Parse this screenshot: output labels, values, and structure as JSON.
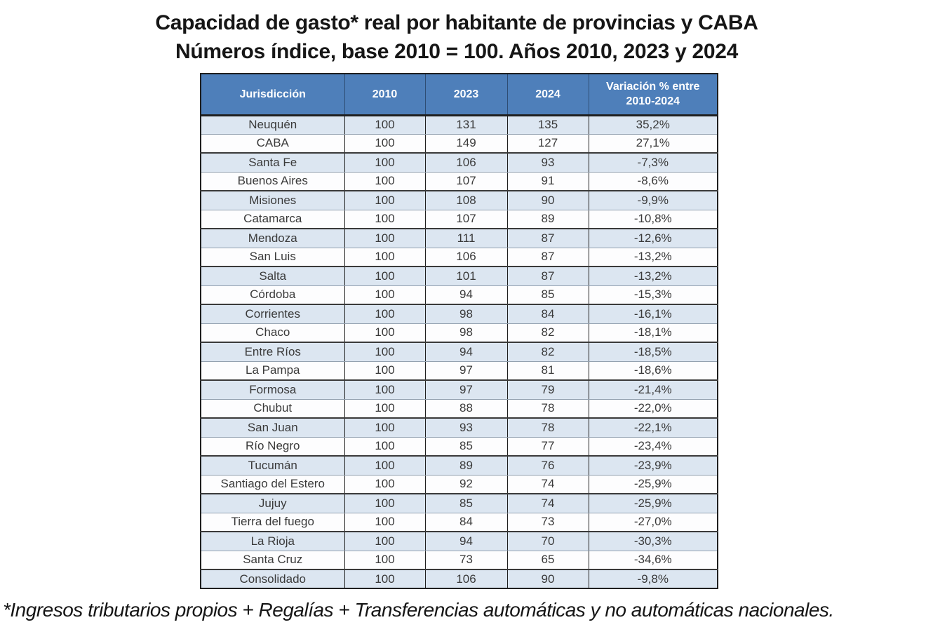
{
  "title": {
    "line1": "Capacidad de gasto* real por habitante de provincias y CABA",
    "line2": "Números índice, base 2010 = 100. Años 2010, 2023 y 2024"
  },
  "table_header": {
    "jurisdiccion": "Jurisdicción",
    "y2010": "2010",
    "y2023": "2023",
    "y2024": "2024",
    "variacion_line1": "Variación % entre",
    "variacion_line2": "2010-2024"
  },
  "chart_data": {
    "type": "table",
    "title": "Capacidad de gasto* real por habitante de provincias y CABA — Números índice, base 2010 = 100. Años 2010, 2023 y 2024",
    "columns": [
      "Jurisdicción",
      "2010",
      "2023",
      "2024",
      "Variación % entre 2010-2024"
    ],
    "rows": [
      {
        "jurisdiccion": "Neuquén",
        "y2010": "100",
        "y2023": "131",
        "y2024": "135",
        "variacion": "35,2%"
      },
      {
        "jurisdiccion": "CABA",
        "y2010": "100",
        "y2023": "149",
        "y2024": "127",
        "variacion": "27,1%"
      },
      {
        "jurisdiccion": "Santa Fe",
        "y2010": "100",
        "y2023": "106",
        "y2024": "93",
        "variacion": "-7,3%"
      },
      {
        "jurisdiccion": "Buenos Aires",
        "y2010": "100",
        "y2023": "107",
        "y2024": "91",
        "variacion": "-8,6%"
      },
      {
        "jurisdiccion": "Misiones",
        "y2010": "100",
        "y2023": "108",
        "y2024": "90",
        "variacion": "-9,9%"
      },
      {
        "jurisdiccion": "Catamarca",
        "y2010": "100",
        "y2023": "107",
        "y2024": "89",
        "variacion": "-10,8%"
      },
      {
        "jurisdiccion": "Mendoza",
        "y2010": "100",
        "y2023": "111",
        "y2024": "87",
        "variacion": "-12,6%"
      },
      {
        "jurisdiccion": "San Luis",
        "y2010": "100",
        "y2023": "106",
        "y2024": "87",
        "variacion": "-13,2%"
      },
      {
        "jurisdiccion": "Salta",
        "y2010": "100",
        "y2023": "101",
        "y2024": "87",
        "variacion": "-13,2%"
      },
      {
        "jurisdiccion": "Córdoba",
        "y2010": "100",
        "y2023": "94",
        "y2024": "85",
        "variacion": "-15,3%"
      },
      {
        "jurisdiccion": "Corrientes",
        "y2010": "100",
        "y2023": "98",
        "y2024": "84",
        "variacion": "-16,1%"
      },
      {
        "jurisdiccion": "Chaco",
        "y2010": "100",
        "y2023": "98",
        "y2024": "82",
        "variacion": "-18,1%"
      },
      {
        "jurisdiccion": "Entre Ríos",
        "y2010": "100",
        "y2023": "94",
        "y2024": "82",
        "variacion": "-18,5%"
      },
      {
        "jurisdiccion": "La Pampa",
        "y2010": "100",
        "y2023": "97",
        "y2024": "81",
        "variacion": "-18,6%"
      },
      {
        "jurisdiccion": "Formosa",
        "y2010": "100",
        "y2023": "97",
        "y2024": "79",
        "variacion": "-21,4%"
      },
      {
        "jurisdiccion": "Chubut",
        "y2010": "100",
        "y2023": "88",
        "y2024": "78",
        "variacion": "-22,0%"
      },
      {
        "jurisdiccion": "San Juan",
        "y2010": "100",
        "y2023": "93",
        "y2024": "78",
        "variacion": "-22,1%"
      },
      {
        "jurisdiccion": "Río Negro",
        "y2010": "100",
        "y2023": "85",
        "y2024": "77",
        "variacion": "-23,4%"
      },
      {
        "jurisdiccion": "Tucumán",
        "y2010": "100",
        "y2023": "89",
        "y2024": "76",
        "variacion": "-23,9%"
      },
      {
        "jurisdiccion": "Santiago del Estero",
        "y2010": "100",
        "y2023": "92",
        "y2024": "74",
        "variacion": "-25,9%"
      },
      {
        "jurisdiccion": "Jujuy",
        "y2010": "100",
        "y2023": "85",
        "y2024": "74",
        "variacion": "-25,9%"
      },
      {
        "jurisdiccion": "Tierra del fuego",
        "y2010": "100",
        "y2023": "84",
        "y2024": "73",
        "variacion": "-27,0%"
      },
      {
        "jurisdiccion": "La Rioja",
        "y2010": "100",
        "y2023": "94",
        "y2024": "70",
        "variacion": "-30,3%"
      },
      {
        "jurisdiccion": "Santa Cruz",
        "y2010": "100",
        "y2023": "73",
        "y2024": "65",
        "variacion": "-34,6%"
      },
      {
        "jurisdiccion": "Consolidado",
        "y2010": "100",
        "y2023": "106",
        "y2024": "90",
        "variacion": "-9,8%"
      }
    ]
  },
  "footnote": "*Ingresos tributarios  propios + Regalías + Transferencias  automáticas y no automáticas  nacionales.",
  "colors": {
    "header_bg": "#4e7fba",
    "header_text": "#ffffff",
    "row_alt_bg": "#dce6f1",
    "row_bg": "#fdfdfe",
    "body_text": "#3a3a3a",
    "title_text": "#161616",
    "border_heavy": "#1f1f1f",
    "border_light": "#93a1b0"
  }
}
